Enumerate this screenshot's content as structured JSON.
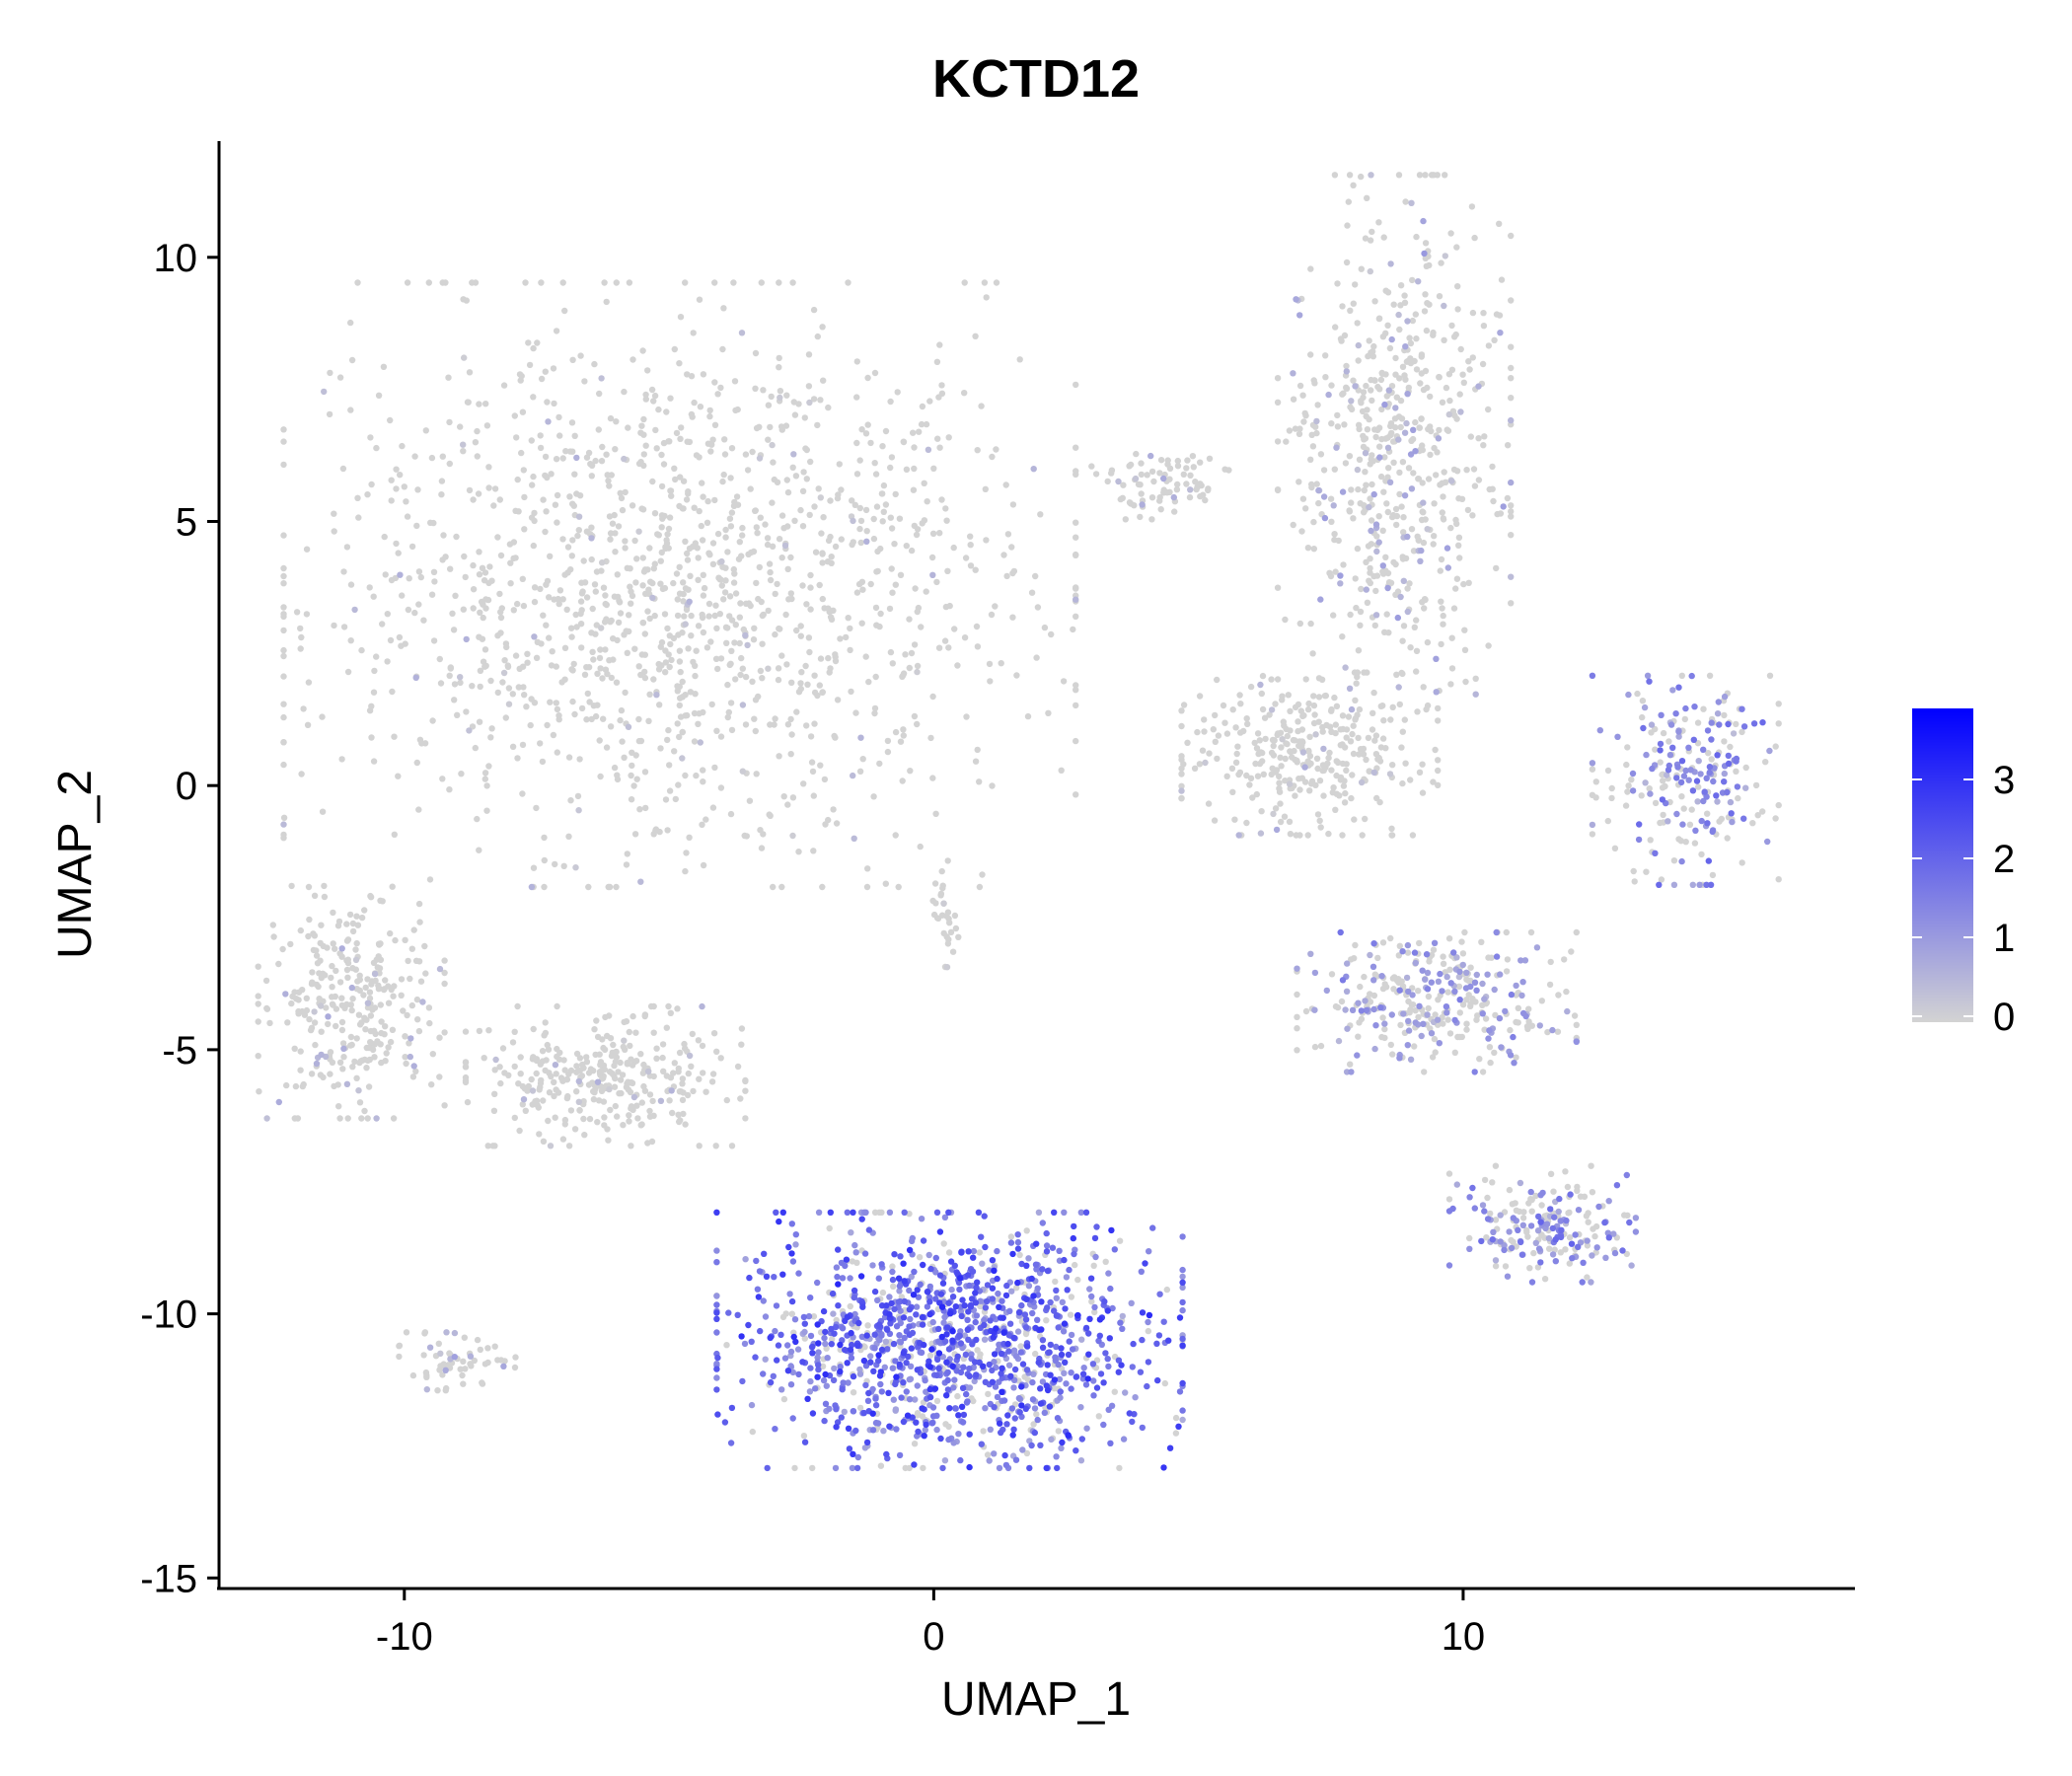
{
  "chart_data": {
    "type": "scatter",
    "title": "KCTD12",
    "xlabel": "UMAP_1",
    "ylabel": "UMAP_2",
    "xlim": [
      -13.5,
      17.4
    ],
    "ylim": [
      -15.2,
      12.2
    ],
    "x_ticks": [
      -10,
      0,
      10
    ],
    "x_tick_labels": [
      "-10",
      "0",
      "10"
    ],
    "y_ticks": [
      -15,
      -10,
      -5,
      0,
      5,
      10
    ],
    "y_tick_labels": [
      "-15",
      "-10",
      "-5",
      "0",
      "5",
      "10"
    ],
    "grid": false,
    "legend_position": "right",
    "colorbar": {
      "low_color": "#d3d3d3",
      "high_color": "#0000ff",
      "range": [
        0,
        3.9
      ],
      "ticks": [
        0,
        1,
        2,
        3
      ],
      "tick_labels": [
        "0",
        "1",
        "2",
        "3"
      ]
    },
    "clusters": [
      {
        "name": "large upper-left cluster",
        "center": [
          -4.8,
          3.8
        ],
        "spread": [
          3.4,
          2.6
        ],
        "points": 1400,
        "expression_mean": 0.04
      },
      {
        "name": "upper-right tall cluster",
        "center": [
          8.7,
          6.5
        ],
        "spread": [
          1.0,
          2.3
        ],
        "points": 600,
        "expression_mean": 0.25
      },
      {
        "name": "right-middle cluster",
        "center": [
          7.1,
          0.6
        ],
        "spread": [
          1.1,
          0.7
        ],
        "points": 320,
        "expression_mean": 0.1
      },
      {
        "name": "small strand near top",
        "center": [
          4.3,
          5.7
        ],
        "spread": [
          0.6,
          0.3
        ],
        "points": 80,
        "expression_mean": 0.1
      },
      {
        "name": "far-right crescent",
        "center": [
          14.2,
          0.1
        ],
        "spread": [
          0.8,
          0.9
        ],
        "points": 240,
        "expression_mean": 0.8
      },
      {
        "name": "right lower-middle cluster",
        "center": [
          9.5,
          -4.1
        ],
        "spread": [
          1.2,
          0.6
        ],
        "points": 330,
        "expression_mean": 0.6
      },
      {
        "name": "left cluster",
        "center": [
          -11.0,
          -4.1
        ],
        "spread": [
          0.8,
          1.0
        ],
        "points": 300,
        "expression_mean": 0.1
      },
      {
        "name": "left-middle cluster",
        "center": [
          -6.2,
          -5.5
        ],
        "spread": [
          1.2,
          0.6
        ],
        "points": 320,
        "expression_mean": 0.05
      },
      {
        "name": "tiny center strand",
        "center": [
          0.2,
          -2.5
        ],
        "spread": [
          0.12,
          0.5
        ],
        "points": 30,
        "expression_mean": 0.05
      },
      {
        "name": "bottom center cluster",
        "center": [
          0.3,
          -10.5
        ],
        "spread": [
          2.0,
          1.1
        ],
        "points": 1300,
        "expression_mean": 1.3
      },
      {
        "name": "bottom right cluster",
        "center": [
          11.5,
          -8.3
        ],
        "spread": [
          0.8,
          0.5
        ],
        "points": 200,
        "expression_mean": 0.8
      },
      {
        "name": "tiny bottom-left cluster",
        "center": [
          -9.0,
          -10.9
        ],
        "spread": [
          0.5,
          0.25
        ],
        "points": 60,
        "expression_mean": 0.3
      }
    ]
  }
}
